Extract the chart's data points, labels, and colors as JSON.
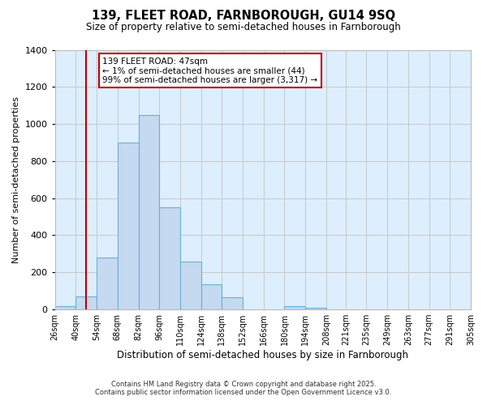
{
  "title_line1": "139, FLEET ROAD, FARNBOROUGH, GU14 9SQ",
  "title_line2": "Size of property relative to semi-detached houses in Farnborough",
  "xlabel": "Distribution of semi-detached houses by size in Farnborough",
  "ylabel": "Number of semi-detached properties",
  "bin_labels": [
    "26sqm",
    "40sqm",
    "54sqm",
    "68sqm",
    "82sqm",
    "96sqm",
    "110sqm",
    "124sqm",
    "138sqm",
    "152sqm",
    "166sqm",
    "180sqm",
    "194sqm",
    "208sqm",
    "221sqm",
    "235sqm",
    "249sqm",
    "263sqm",
    "277sqm",
    "291sqm",
    "305sqm"
  ],
  "bin_edges": [
    26,
    40,
    54,
    68,
    82,
    96,
    110,
    124,
    138,
    152,
    166,
    180,
    194,
    208,
    221,
    235,
    249,
    263,
    277,
    291,
    305
  ],
  "bar_heights": [
    20,
    70,
    280,
    900,
    1050,
    550,
    260,
    135,
    65,
    0,
    0,
    20,
    10,
    0,
    0,
    0,
    0,
    0,
    0,
    0
  ],
  "bar_color": "#c5d9f0",
  "bar_edgecolor": "#6baed6",
  "grid_color": "#c8c8c8",
  "vline_x": 47,
  "vline_color": "#bb0000",
  "annotation_text": "139 FLEET ROAD: 47sqm\n← 1% of semi-detached houses are smaller (44)\n99% of semi-detached houses are larger (3,317) →",
  "annotation_box_edgecolor": "#bb0000",
  "annotation_box_facecolor": "#ffffff",
  "ylim": [
    0,
    1400
  ],
  "yticks": [
    0,
    200,
    400,
    600,
    800,
    1000,
    1200,
    1400
  ],
  "footnote1": "Contains HM Land Registry data © Crown copyright and database right 2025.",
  "footnote2": "Contains public sector information licensed under the Open Government Licence v3.0.",
  "fig_bg_color": "#ffffff",
  "ax_bg_color": "#ddeeff"
}
